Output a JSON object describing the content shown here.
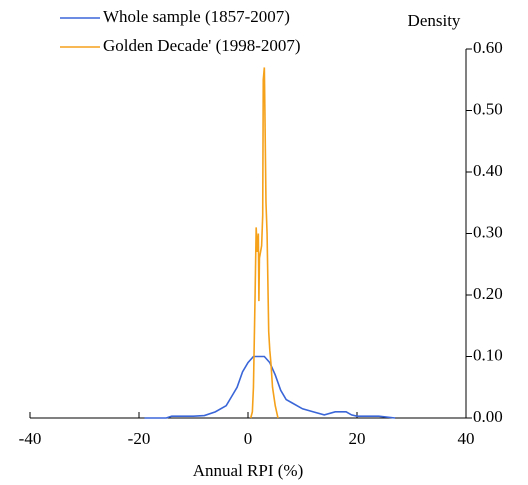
{
  "chart_data": {
    "type": "line",
    "x_label": "Annual RPI (%)",
    "y_label": "Density",
    "series": [
      {
        "name": "Whole sample (1857-2007)",
        "color": "#3a66d8",
        "x": [
          -19,
          -15,
          -14,
          -12,
          -10,
          -8,
          -6,
          -4,
          -3,
          -2,
          -1,
          0,
          1,
          2,
          3,
          4,
          5,
          6,
          7,
          8,
          10,
          12,
          14,
          16,
          18,
          19,
          20,
          24,
          27
        ],
        "values": [
          0,
          0,
          0.003,
          0.003,
          0.003,
          0.004,
          0.01,
          0.02,
          0.035,
          0.05,
          0.075,
          0.09,
          0.1,
          0.1,
          0.1,
          0.09,
          0.07,
          0.045,
          0.03,
          0.025,
          0.015,
          0.01,
          0.005,
          0.01,
          0.01,
          0.005,
          0.003,
          0.003,
          0
        ]
      },
      {
        "name": "Golden Decade' (1998-2007)",
        "color": "#f5a11a",
        "x": [
          0.5,
          0.8,
          1.0,
          1.3,
          1.5,
          1.7,
          1.9,
          2.0,
          2.1,
          2.3,
          2.5,
          2.7,
          2.8,
          2.9,
          3.0,
          3.1,
          3.3,
          3.5,
          3.8,
          4.0,
          4.2,
          4.5,
          5.0,
          5.5
        ],
        "values": [
          0,
          0.01,
          0.05,
          0.2,
          0.31,
          0.27,
          0.3,
          0.19,
          0.26,
          0.27,
          0.28,
          0.33,
          0.55,
          0.56,
          0.57,
          0.5,
          0.35,
          0.3,
          0.14,
          0.11,
          0.09,
          0.05,
          0.02,
          0
        ]
      }
    ],
    "xlim": [
      -40,
      40
    ],
    "xticks": [
      -40,
      -20,
      0,
      20,
      40
    ],
    "ylim": [
      0,
      0.6
    ],
    "yticks": [
      {
        "value": 0,
        "label": "0.00"
      },
      {
        "value": 0.1,
        "label": "0.10"
      },
      {
        "value": 0.2,
        "label": "0.20"
      },
      {
        "value": 0.3,
        "label": "0.30"
      },
      {
        "value": 0.4,
        "label": "0.40"
      },
      {
        "value": 0.5,
        "label": "0.50"
      },
      {
        "value": 0.6,
        "label": "0.60"
      }
    ],
    "y_axis_side": "right",
    "grid": false,
    "legend": "top-left"
  }
}
